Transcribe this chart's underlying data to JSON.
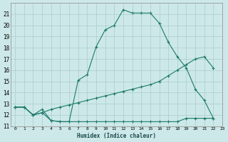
{
  "background_color": "#cde8e8",
  "grid_color": "#aacccc",
  "line_color": "#1a7a6a",
  "xlabel": "Humidex (Indice chaleur)",
  "ylim": [
    11,
    22
  ],
  "xlim": [
    -0.5,
    23
  ],
  "yticks": [
    11,
    12,
    13,
    14,
    15,
    16,
    17,
    18,
    19,
    20,
    21
  ],
  "xticks": [
    0,
    1,
    2,
    3,
    4,
    5,
    6,
    7,
    8,
    9,
    10,
    11,
    12,
    13,
    14,
    15,
    16,
    17,
    18,
    19,
    20,
    21,
    22,
    23
  ],
  "series1_x": [
    0,
    1,
    2,
    3,
    4,
    5,
    6,
    7,
    8,
    9,
    10,
    11,
    12,
    13,
    14,
    15,
    16,
    17,
    18,
    19,
    20,
    21,
    22
  ],
  "series1_y": [
    12.7,
    12.7,
    12.0,
    12.2,
    11.5,
    11.4,
    11.4,
    15.1,
    15.6,
    18.1,
    19.6,
    20.0,
    21.4,
    21.1,
    21.1,
    21.1,
    20.2,
    18.5,
    17.2,
    16.2,
    14.3,
    13.3,
    11.7
  ],
  "series2_x": [
    0,
    1,
    2,
    3,
    4,
    5,
    6,
    7,
    8,
    9,
    10,
    11,
    12,
    13,
    14,
    15,
    16,
    17,
    18,
    19,
    20,
    21,
    22
  ],
  "series2_y": [
    12.7,
    12.7,
    12.0,
    12.2,
    12.5,
    12.7,
    12.9,
    13.1,
    13.3,
    13.5,
    13.7,
    13.9,
    14.1,
    14.3,
    14.5,
    14.7,
    15.0,
    15.5,
    16.0,
    16.5,
    17.0,
    17.2,
    16.2
  ],
  "series3_x": [
    0,
    1,
    2,
    3,
    4,
    5,
    6,
    7,
    8,
    9,
    10,
    11,
    12,
    13,
    14,
    15,
    16,
    17,
    18,
    19,
    20,
    21,
    22
  ],
  "series3_y": [
    12.7,
    12.7,
    12.0,
    12.5,
    11.5,
    11.4,
    11.4,
    11.4,
    11.4,
    11.4,
    11.4,
    11.4,
    11.4,
    11.4,
    11.4,
    11.4,
    11.4,
    11.4,
    11.4,
    11.7,
    11.7,
    11.7,
    11.7
  ]
}
